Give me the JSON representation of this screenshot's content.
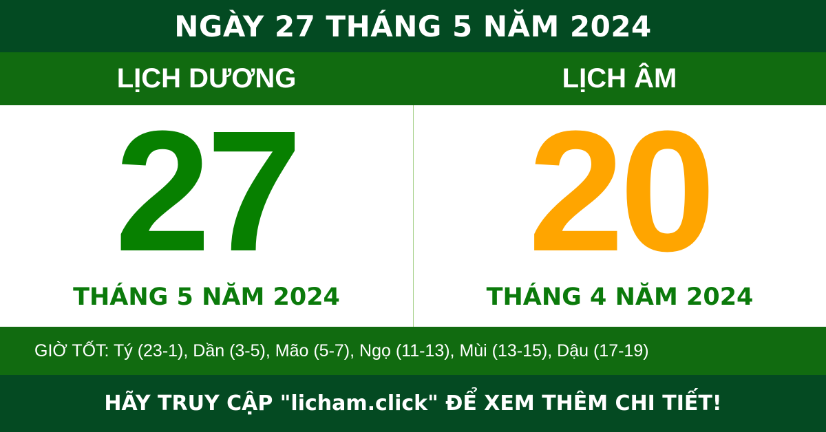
{
  "header": {
    "title": "NGÀY 27 THÁNG 5 NĂM 2024"
  },
  "solar": {
    "label": "LỊCH DƯƠNG",
    "day": "27",
    "month_year": "THÁNG 5 NĂM 2024",
    "day_color": "#078000"
  },
  "lunar": {
    "label": "LỊCH ÂM",
    "day": "20",
    "month_year": "THÁNG 4 NĂM 2024",
    "day_color": "#ffa500"
  },
  "good_hours": "GIỜ TỐT: Tý (23-1), Dần (3-5), Mão (5-7), Ngọ (11-13), Mùi (13-15), Dậu (17-19)",
  "footer": {
    "cta": "HÃY TRUY CẬP \"licham.click\" ĐỂ XEM THÊM CHI TIẾT!"
  },
  "colors": {
    "dark_green": "#034a22",
    "green": "#116b10"
  }
}
